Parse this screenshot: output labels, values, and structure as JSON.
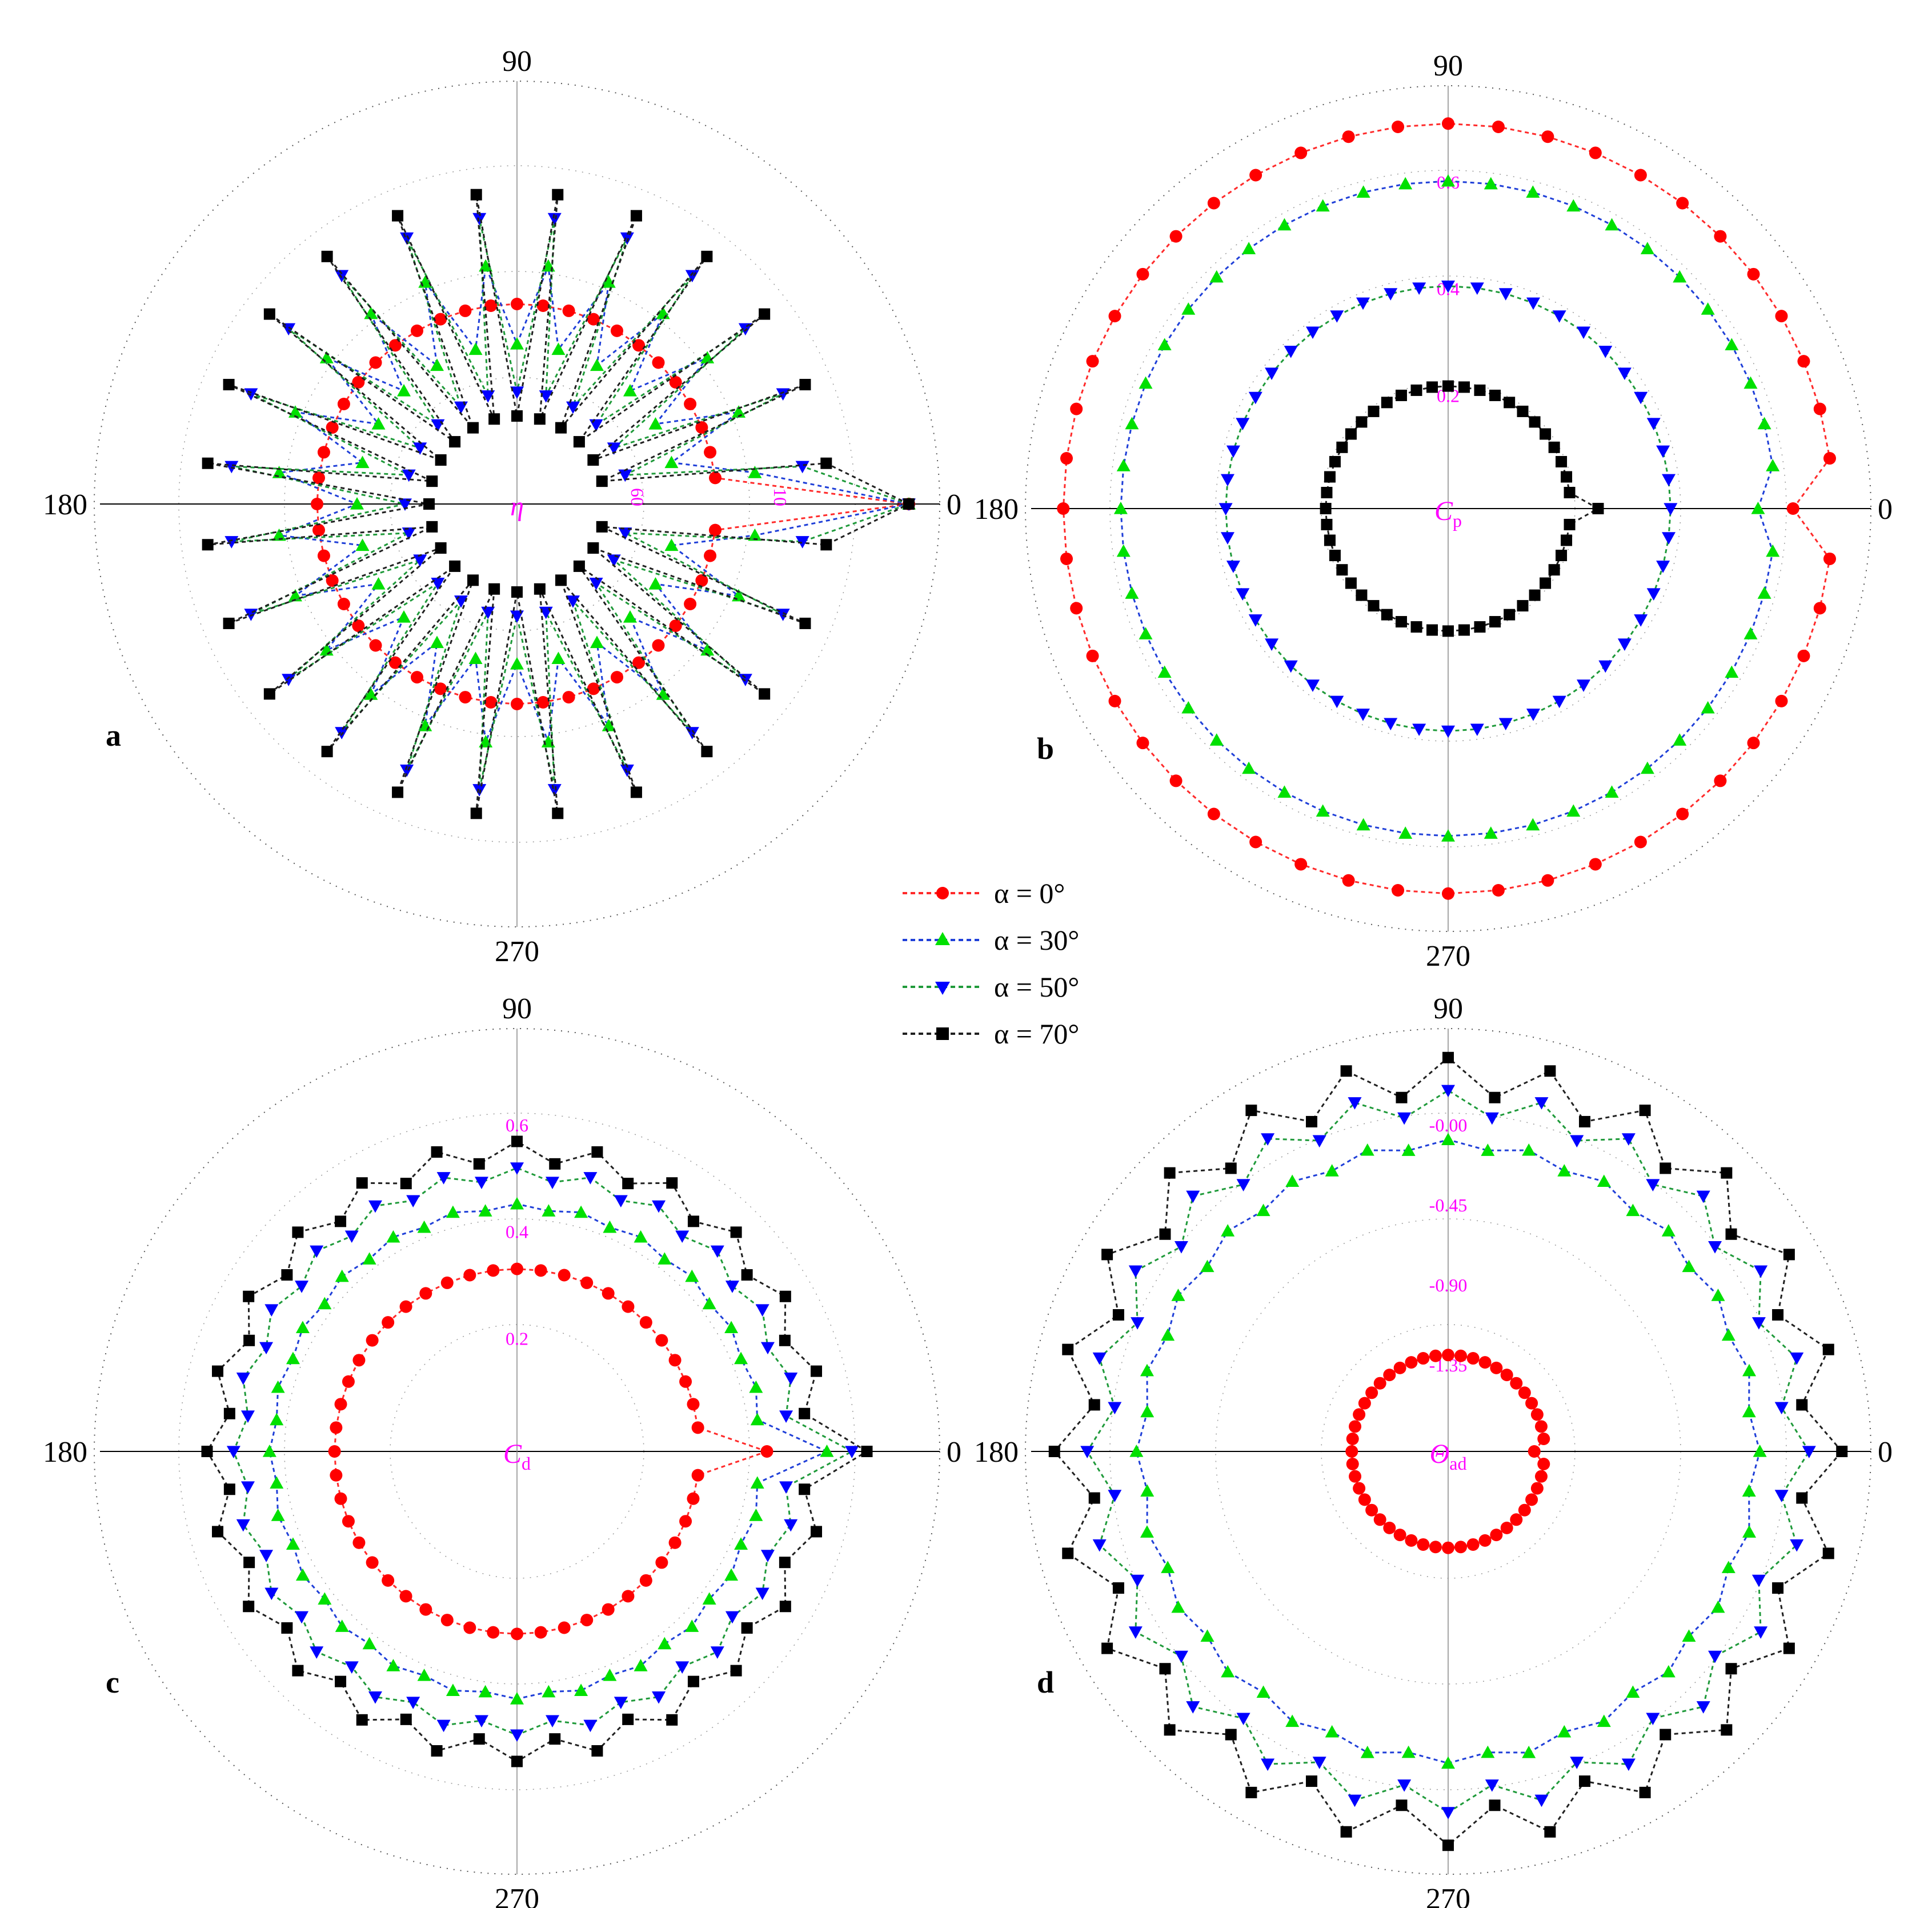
{
  "legend": {
    "entries": [
      {
        "label": "α = 0°",
        "color": "#ff0000",
        "marker": "circle"
      },
      {
        "label": "α = 30°",
        "color": "#00e000",
        "marker": "triangle-up"
      },
      {
        "label": "α = 50°",
        "color": "#0000ff",
        "marker": "triangle-down"
      },
      {
        "label": "α = 70°",
        "color": "#000000",
        "marker": "square"
      }
    ]
  },
  "line_colors": [
    "#ff2a2a",
    "#1f3fd8",
    "#1f9a3a",
    "#202020"
  ],
  "chart_data": [
    {
      "panel": "a",
      "type": "polar-scatter",
      "quantity": "η",
      "quantity_sub": "",
      "angle_labels": [
        "0",
        "90",
        "180",
        "270"
      ],
      "radial_tick_labels": [
        "60",
        "10"
      ],
      "radial_axis": "reversed",
      "rlim": [
        0,
        100
      ],
      "theta_step_deg": 7.5,
      "series": [
        {
          "name": "α = 0°",
          "mean": 50,
          "zigzag": 0,
          "notch": {
            "type": "gap",
            "value": 2
          }
        },
        {
          "name": "α = 30°",
          "mean": 50,
          "zigzag": 10,
          "notch": {
            "type": "gap",
            "value": 2
          }
        },
        {
          "name": "α = 50°",
          "mean": 50,
          "zigzag": 22,
          "notch": {
            "type": "gap",
            "value": 2
          }
        },
        {
          "name": "α = 70°",
          "mean": 50,
          "zigzag": 28,
          "notch": {
            "type": "gap",
            "value": 2
          }
        }
      ]
    },
    {
      "panel": "b",
      "type": "polar-scatter",
      "quantity": "C",
      "quantity_sub": "p",
      "angle_labels": [
        "0",
        "90",
        "180",
        "270"
      ],
      "radial_tick_labels": [
        "0.6",
        "0.4",
        "0.2"
      ],
      "rlim": [
        0,
        0.8
      ],
      "theta_step_deg": 7.5,
      "series": [
        {
          "name": "α = 0°",
          "mean": 0.77,
          "zigzag": 0,
          "notch": {
            "type": "dip",
            "value": 0.69
          }
        },
        {
          "name": "α = 30°",
          "mean": 0.655,
          "zigzag": 0,
          "notch": {
            "type": "dip",
            "value": 0.62
          }
        },
        {
          "name": "α = 50°",
          "mean": 0.445,
          "zigzag": 0,
          "notch": {
            "type": "none"
          }
        },
        {
          "name": "α = 70°",
          "mean": 0.245,
          "zigzag": 0,
          "notch": {
            "type": "spike",
            "value": 0.3
          }
        }
      ]
    },
    {
      "panel": "c",
      "type": "polar-scatter",
      "quantity": "C",
      "quantity_sub": "d",
      "angle_labels": [
        "0",
        "90",
        "180",
        "270"
      ],
      "radial_tick_labels": [
        "0.6",
        "0.4",
        "0.2"
      ],
      "rlim": [
        0,
        0.8
      ],
      "theta_step_deg": 7.5,
      "series": [
        {
          "name": "α = 0°",
          "mean": 0.365,
          "zigzag": 0,
          "notch": {
            "type": "spike",
            "value": 0.5
          }
        },
        {
          "name": "α = 30°",
          "mean": 0.49,
          "zigzag": 0.005,
          "notch": {
            "type": "spike",
            "value": 0.62
          }
        },
        {
          "name": "α = 50°",
          "mean": 0.555,
          "zigzag": 0.012,
          "notch": {
            "type": "spike",
            "value": 0.67
          }
        },
        {
          "name": "α = 70°",
          "mean": 0.6,
          "zigzag": 0.02,
          "notch": {
            "type": "spike",
            "value": 0.7
          }
        }
      ]
    },
    {
      "panel": "d",
      "type": "polar-scatter",
      "quantity": "Θ",
      "quantity_sub": "ad",
      "angle_labels": [
        "0",
        "90",
        "180",
        "270"
      ],
      "radial_tick_labels": [
        "-0.00",
        "-0.45",
        "-0.90",
        "-1.35"
      ],
      "rlim": [
        -1.8,
        0.15
      ],
      "theta_step_deg": 7.5,
      "series": [
        {
          "name": "α = 0°",
          "mean": -1.33,
          "zigzag": 0,
          "notch": {
            "type": "dip",
            "value": -1.38
          }
        },
        {
          "name": "α = 30°",
          "mean": -0.3,
          "zigzag": 0.02,
          "notch": {
            "type": "none"
          }
        },
        {
          "name": "α = 50°",
          "mean": -0.1,
          "zigzag": 0.06,
          "notch": {
            "type": "none"
          }
        },
        {
          "name": "α = 70°",
          "mean": 0.03,
          "zigzag": 0.09,
          "notch": {
            "type": "none"
          }
        }
      ]
    }
  ]
}
